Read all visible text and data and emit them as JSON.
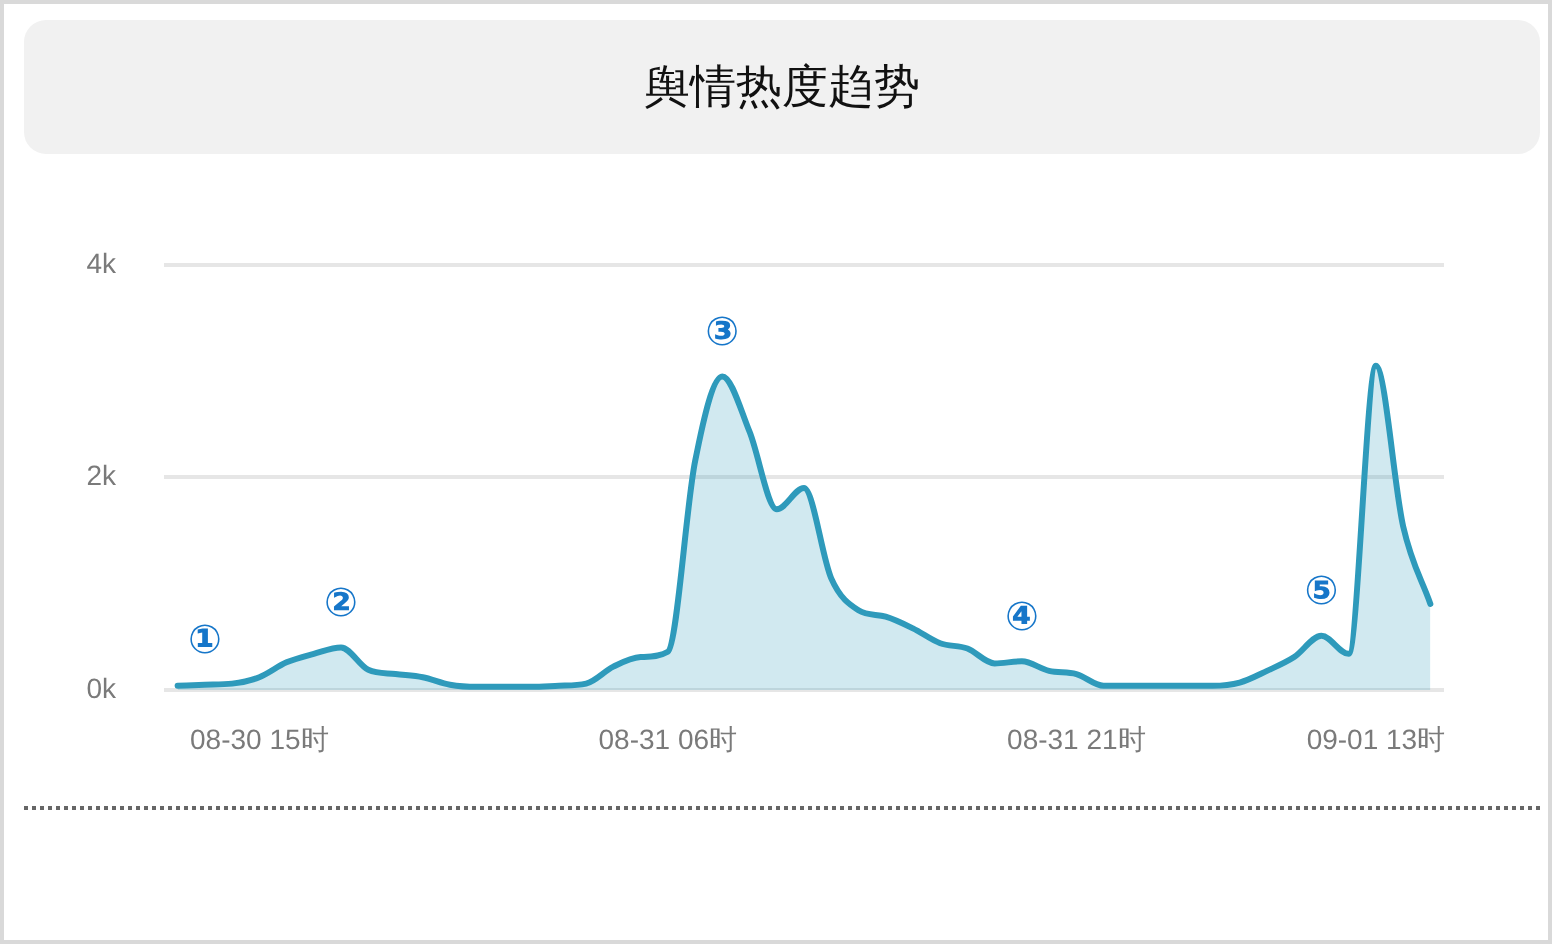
{
  "chart_data": {
    "type": "area",
    "title": "舆情热度趋势",
    "categories": [
      null,
      null,
      null,
      "08-30 15时",
      null,
      null,
      null,
      null,
      null,
      null,
      null,
      null,
      null,
      null,
      null,
      null,
      null,
      null,
      "08-31 06时",
      null,
      null,
      null,
      null,
      null,
      null,
      null,
      null,
      null,
      null,
      null,
      null,
      null,
      null,
      "08-31 21时",
      null,
      null,
      null,
      null,
      null,
      null,
      null,
      null,
      null,
      null,
      "09-01 13时",
      null,
      null
    ],
    "values": [
      40,
      50,
      60,
      120,
      260,
      340,
      400,
      190,
      150,
      120,
      50,
      30,
      30,
      30,
      40,
      60,
      220,
      310,
      360,
      2150,
      2950,
      2430,
      1700,
      1900,
      1050,
      750,
      690,
      580,
      440,
      390,
      250,
      270,
      180,
      150,
      40,
      40,
      40,
      40,
      40,
      70,
      180,
      310,
      510,
      340,
      3050,
      1540,
      810
    ],
    "color": "#2e9abb",
    "ylim": [
      0,
      4000
    ],
    "yticks": [
      {
        "value": 0,
        "label": "0k"
      },
      {
        "value": 2000,
        "label": "2k"
      },
      {
        "value": 4000,
        "label": "4k"
      }
    ],
    "grid": "y",
    "annotations": [
      {
        "text": "①",
        "y": 50
      },
      {
        "text": "②",
        "y": 400
      },
      {
        "text": "③",
        "y": 2950
      },
      {
        "text": "④",
        "y": 270
      },
      {
        "text": "⑤",
        "y": 510
      }
    ]
  }
}
